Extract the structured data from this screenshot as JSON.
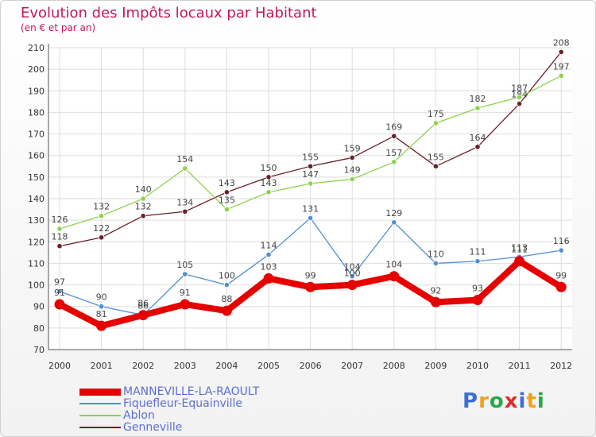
{
  "chart_data": {
    "type": "line",
    "title": "Evolution des Impôts locaux par Habitant",
    "subtitle": "(en € et par an)",
    "categories": [
      "2000",
      "2001",
      "2002",
      "2003",
      "2004",
      "2005",
      "2006",
      "2007",
      "2008",
      "2009",
      "2010",
      "2011",
      "2012"
    ],
    "ylim": [
      70,
      210
    ],
    "yticks": [
      70,
      80,
      90,
      100,
      110,
      120,
      130,
      140,
      150,
      160,
      170,
      180,
      190,
      200,
      210
    ],
    "xlabel": "",
    "ylabel": "",
    "grid": true,
    "series": [
      {
        "name": "Genneville",
        "color": "#6b1f2a",
        "values": [
          118,
          122,
          132,
          134,
          143,
          150,
          155,
          159,
          169,
          155,
          164,
          184,
          208
        ]
      },
      {
        "name": "Ablon",
        "color": "#8fd14f",
        "values": [
          126,
          132,
          140,
          154,
          135,
          143,
          147,
          149,
          157,
          175,
          182,
          187,
          197
        ]
      },
      {
        "name": "Fiquefleur-Equainville",
        "color": "#4f8fd6",
        "values": [
          97,
          90,
          86,
          105,
          100,
          114,
          131,
          104,
          129,
          110,
          111,
          113,
          116
        ]
      },
      {
        "name": "MANNEVILLE-LA-RAOULT",
        "color": "#e60000",
        "values": [
          91,
          81,
          86,
          91,
          88,
          103,
          99,
          100,
          104,
          92,
          93,
          111,
          99
        ]
      }
    ]
  },
  "legend": {
    "items": [
      {
        "name": "MANNEVILLE-LA-RAOULT",
        "color": "#e60000"
      },
      {
        "name": "Fiquefleur-Equainville",
        "color": "#4f8fd6"
      },
      {
        "name": "Ablon",
        "color": "#8fd14f"
      },
      {
        "name": "Genneville",
        "color": "#6b1f2a"
      }
    ]
  },
  "logo": {
    "text": "Proxiti"
  }
}
